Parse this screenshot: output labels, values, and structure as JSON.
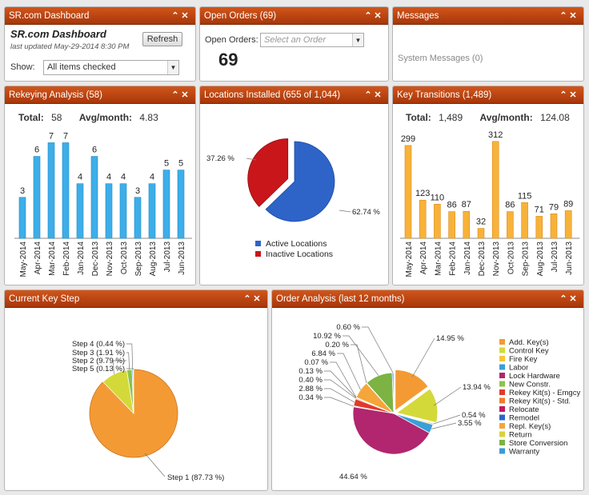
{
  "dashboard": {
    "title": "SR.com Dashboard",
    "heading": "SR.com Dashboard",
    "last_updated": "last updated May-29-2014 8:30 PM",
    "refresh_label": "Refresh",
    "show_label": "Show:",
    "show_value": "All items checked"
  },
  "open_orders": {
    "title": "Open Orders (69)",
    "label": "Open Orders:",
    "select_placeholder": "Select an Order",
    "count": "69"
  },
  "messages": {
    "title": "Messages",
    "system_messages": "System Messages (0)"
  },
  "rekeying": {
    "title": "Rekeying Analysis (58)",
    "total_label": "Total:",
    "total_value": "58",
    "avg_label": "Avg/month:",
    "avg_value": "4.83"
  },
  "locations": {
    "title": "Locations Installed (655 of 1,044)"
  },
  "key_transitions": {
    "title": "Key Transitions (1,489)",
    "total_label": "Total:",
    "total_value": "1,489",
    "avg_label": "Avg/month:",
    "avg_value": "124.08"
  },
  "current_key_step": {
    "title": "Current Key Step"
  },
  "order_analysis": {
    "title": "Order Analysis (last 12 months)"
  },
  "colors": {
    "header": "#c2461a",
    "bar_blue": "#3daee9",
    "bar_orange": "#f8b23a",
    "pie_blue": "#2e64c8",
    "pie_red": "#c9161b",
    "step_orange": "#f49a35",
    "step_lime": "#d4d93a"
  },
  "chart_data": [
    {
      "type": "bar",
      "categories": [
        "May-2014",
        "Apr-2014",
        "Mar-2014",
        "Feb-2014",
        "Jan-2014",
        "Dec-2013",
        "Nov-2013",
        "Oct-2013",
        "Sep-2013",
        "Aug-2013",
        "Jul-2013",
        "Jun-2013"
      ],
      "values": [
        3,
        6,
        7,
        7,
        4,
        6,
        4,
        4,
        3,
        4,
        5,
        5
      ],
      "ylim": [
        0,
        8.2
      ]
    },
    {
      "type": "pie",
      "labels": [
        "Active Locations",
        "Inactive Locations"
      ],
      "values": [
        62.74,
        37.26
      ],
      "value_labels": [
        "62.74 %",
        "37.26 %"
      ],
      "colors": [
        "#2e64c8",
        "#c9161b"
      ]
    },
    {
      "type": "bar",
      "categories": [
        "May-2014",
        "Apr-2014",
        "Mar-2014",
        "Feb-2014",
        "Jan-2014",
        "Dec-2013",
        "Nov-2013",
        "Oct-2013",
        "Sep-2013",
        "Aug-2013",
        "Jul-2013",
        "Jun-2013"
      ],
      "values": [
        299,
        123,
        110,
        86,
        87,
        32,
        312,
        86,
        115,
        71,
        79,
        89
      ],
      "ylim": [
        0,
        345
      ]
    },
    {
      "type": "pie",
      "labels": [
        "Step 1",
        "Step 2",
        "Step 3",
        "Step 4",
        "Step 5"
      ],
      "values": [
        87.73,
        9.79,
        1.91,
        0.44,
        0.13
      ],
      "value_labels": [
        "Step 1 (87.73 %)",
        "Step 2 (9.79 %)",
        "Step 3 (1.91 %)",
        "Step 4 (0.44 %)",
        "Step 5 (0.13 %)"
      ],
      "colors": [
        "#f49a35",
        "#d4d93a",
        "#8bc34a",
        "#2e9fd8",
        "#c0c0c0"
      ]
    },
    {
      "type": "pie",
      "labels": [
        "Add. Key(s)",
        "Control Key",
        "Fire Key",
        "Labor",
        "Lock Hardware",
        "New Constr.",
        "Rekey Kit(s) - Emgcy",
        "Rekey Kit(s) - Std.",
        "Relocate",
        "Remodel",
        "Repl. Key(s)",
        "Return",
        "Store Conversion",
        "Warranty"
      ],
      "values": [
        14.95,
        13.94,
        0.54,
        3.55,
        44.64,
        0.34,
        2.88,
        0.4,
        0.13,
        0.07,
        6.84,
        0.2,
        10.92,
        0.6
      ],
      "value_labels": [
        "14.95 %",
        "13.94 %",
        "0.54 %",
        "3.55 %",
        "44.64 %",
        "0.34 %",
        "2.88 %",
        "0.40 %",
        "0.13 %",
        "0.07 %",
        "6.84 %",
        "0.20 %",
        "10.92 %",
        "0.60 %"
      ],
      "colors": [
        "#f49a35",
        "#d4d93a",
        "#f7c43a",
        "#3a9fd8",
        "#b1266e",
        "#8bc34a",
        "#e23a2a",
        "#f37a2a",
        "#c2185b",
        "#2e64c8",
        "#f4a63a",
        "#d8d33a",
        "#7cb342",
        "#3a9ad8"
      ]
    }
  ]
}
